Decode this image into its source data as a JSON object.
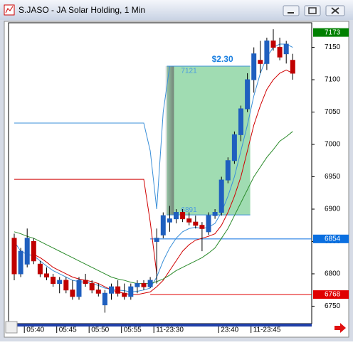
{
  "window": {
    "title": "S.JASO - JA Solar Holding, 1 Min"
  },
  "chart_data": {
    "type": "candlestick",
    "categories": [
      null,
      null,
      "05:40",
      null,
      null,
      null,
      null,
      "05:45",
      null,
      null,
      null,
      null,
      "05:50",
      null,
      null,
      null,
      null,
      "05:55",
      null,
      null,
      null,
      null,
      "11-23:30",
      null,
      null,
      null,
      null,
      null,
      null,
      null,
      null,
      null,
      "23:40",
      null,
      null,
      null,
      null,
      "11-23:45",
      null,
      null,
      null,
      null,
      null,
      null
    ],
    "open": [
      6855,
      6800,
      6815,
      6850,
      6815,
      6800,
      6795,
      6785,
      6790,
      6775,
      6765,
      6790,
      6785,
      6775,
      6752,
      6770,
      6780,
      6770,
      6765,
      6780,
      6785,
      6780,
      6850,
      6860,
      6880,
      6885,
      6895,
      6885,
      6880,
      6875,
      6865,
      6890,
      6895,
      6945,
      6975,
      7015,
      7055,
      7100,
      7130,
      7125,
      7160,
      7150,
      7140,
      7130
    ],
    "high": [
      6862,
      6840,
      6870,
      6855,
      6820,
      6810,
      6800,
      6795,
      6795,
      6790,
      6795,
      6800,
      6790,
      6785,
      6775,
      6785,
      6790,
      6785,
      6785,
      6790,
      6790,
      6795,
      6870,
      6895,
      6905,
      6900,
      6900,
      6895,
      6890,
      6880,
      6895,
      6900,
      6950,
      6980,
      7020,
      7060,
      7110,
      7150,
      7160,
      7165,
      7178,
      7165,
      7160,
      7140
    ],
    "low": [
      6790,
      6795,
      6810,
      6815,
      6795,
      6790,
      6780,
      6770,
      6770,
      6760,
      6760,
      6780,
      6770,
      6765,
      6740,
      6760,
      6765,
      6760,
      6760,
      6770,
      6775,
      6778,
      6785,
      6855,
      6865,
      6878,
      6880,
      6875,
      6870,
      6835,
      6860,
      6885,
      6890,
      6940,
      6970,
      7005,
      7050,
      7080,
      7110,
      7115,
      7145,
      7130,
      7125,
      7100
    ],
    "close": [
      6800,
      6835,
      6855,
      6820,
      6800,
      6795,
      6785,
      6790,
      6775,
      6765,
      6790,
      6785,
      6775,
      6770,
      6770,
      6780,
      6770,
      6765,
      6780,
      6785,
      6780,
      6790,
      6855,
      6890,
      6885,
      6895,
      6885,
      6880,
      6875,
      6870,
      6890,
      6895,
      6945,
      6975,
      7015,
      7055,
      7100,
      7140,
      7125,
      7160,
      7150,
      7135,
      7155,
      7110
    ],
    "up_color": "#1f5fbf",
    "down_color": "#c00000",
    "series": [
      {
        "color": "#3a8fd8",
        "values": [
          6850,
          6835,
          6830,
          6828,
          6820,
          6812,
          6805,
          6800,
          6795,
          6790,
          6788,
          6787,
          6785,
          6782,
          6778,
          6776,
          6775,
          6774,
          6772,
          6773,
          6775,
          6778,
          6795,
          6820,
          6840,
          6855,
          6865,
          6870,
          6872,
          6870,
          6872,
          6878,
          6895,
          6920,
          6950,
          6990,
          7030,
          7075,
          7110,
          7135,
          7150,
          7155,
          7155,
          7150
        ]
      },
      {
        "color": "#d00000",
        "values": [
          null,
          null,
          null,
          6830,
          6825,
          6818,
          6810,
          6805,
          6800,
          6795,
          6792,
          6790,
          6788,
          6785,
          6780,
          6775,
          6772,
          6770,
          6768,
          6768,
          6770,
          6772,
          6780,
          6790,
          6805,
          6820,
          6835,
          6845,
          6852,
          6855,
          6858,
          6862,
          6875,
          6895,
          6920,
          6950,
          6990,
          7030,
          7060,
          7085,
          7100,
          7110,
          7115,
          7110
        ]
      },
      {
        "color": "#2a8a2a",
        "values": [
          6865,
          6862,
          6858,
          6855,
          6850,
          6845,
          6840,
          6835,
          6830,
          6825,
          6820,
          6815,
          6810,
          6805,
          6800,
          6795,
          6792,
          6790,
          6787,
          6785,
          6785,
          6785,
          6788,
          6792,
          6798,
          6805,
          6810,
          6815,
          6820,
          6825,
          6832,
          6840,
          6855,
          6870,
          6890,
          6910,
          6930,
          6950,
          6965,
          6980,
          6992,
          7005,
          7012,
          7020
        ]
      },
      {
        "color": "#3a8fd8",
        "values": [
          7033,
          7033,
          7033,
          7033,
          7033,
          7033,
          7033,
          7033,
          7033,
          7033,
          7033,
          7033,
          7033,
          7033,
          7033,
          7033,
          7033,
          7033,
          7033,
          7033,
          7033,
          6990,
          6900,
          7050,
          7121,
          7121,
          7121,
          7121,
          7121,
          7121,
          7121,
          7121,
          7121,
          7121,
          7121,
          7121,
          7121,
          null,
          null,
          null,
          null,
          null,
          null,
          null
        ]
      },
      {
        "color": "#d00000",
        "values": [
          6946,
          6946,
          6946,
          6946,
          6946,
          6946,
          6946,
          6946,
          6946,
          6946,
          6946,
          6946,
          6946,
          6946,
          6946,
          6946,
          6946,
          6946,
          6946,
          6946,
          6946,
          6880,
          6800,
          null,
          null,
          null,
          null,
          null,
          null,
          null,
          null,
          null,
          null,
          null,
          null,
          null,
          null,
          null,
          null,
          null,
          null,
          null,
          null,
          null
        ]
      }
    ],
    "price_labels": [
      {
        "value": 7173,
        "color": "#008000"
      },
      {
        "value": 6854,
        "color": "#0a6fe0"
      },
      {
        "value": 6768,
        "color": "#e00000"
      }
    ],
    "trade": {
      "entry": 6891,
      "exit": 7121,
      "profit": "$2.30"
    },
    "ylim": [
      6723,
      7188
    ],
    "yticks": [
      6750,
      6800,
      6850,
      6900,
      6950,
      7000,
      7050,
      7100,
      7150
    ]
  }
}
